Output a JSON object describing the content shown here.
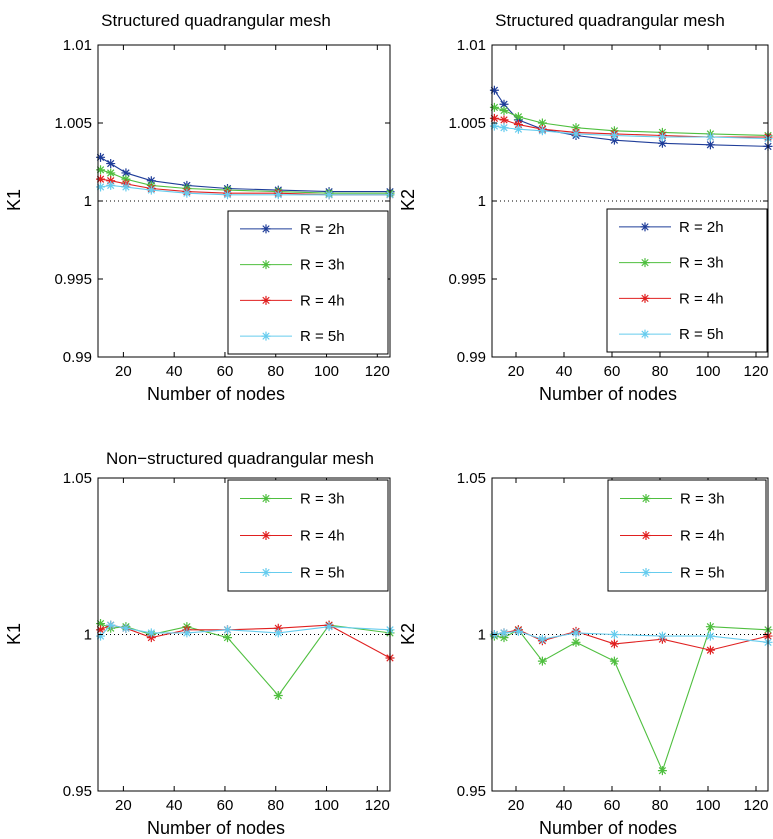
{
  "chart_data": [
    {
      "type": "line",
      "title": "Structured quadrangular mesh",
      "xlabel": "Number of nodes",
      "ylabel": "K1",
      "xlim": [
        10,
        125
      ],
      "ylim": [
        0.99,
        1.01
      ],
      "xticks": [
        20,
        40,
        60,
        80,
        100,
        120
      ],
      "yticks": [
        0.99,
        0.995,
        1,
        1.005,
        1.01
      ],
      "xtick_labels": [
        "20",
        "40",
        "60",
        "80",
        "100",
        "120"
      ],
      "ytick_labels": [
        "0.99",
        "0.995",
        "1",
        "1.005",
        "1.01"
      ],
      "reference_line": 1,
      "grid": false,
      "legend_position": "lower-right",
      "x": [
        11,
        15,
        21,
        31,
        45,
        61,
        81,
        101,
        125
      ],
      "series": [
        {
          "name": "R = 2h",
          "color": "#1f3d99",
          "values": [
            1.0028,
            1.0024,
            1.0018,
            1.0013,
            1.001,
            1.0008,
            1.0007,
            1.0006,
            1.0006
          ]
        },
        {
          "name": "R = 3h",
          "color": "#4fbf3f",
          "values": [
            1.002,
            1.0018,
            1.0014,
            1.001,
            1.0008,
            1.0007,
            1.0006,
            1.0005,
            1.0005
          ]
        },
        {
          "name": "R = 4h",
          "color": "#e02020",
          "values": [
            1.0014,
            1.0013,
            1.0011,
            1.0008,
            1.0006,
            1.0005,
            1.0005,
            1.0004,
            1.0004
          ]
        },
        {
          "name": "R = 5h",
          "color": "#66ccee",
          "values": [
            1.0009,
            1.001,
            1.0009,
            1.0007,
            1.0005,
            1.0004,
            1.0004,
            1.0004,
            1.0004
          ]
        }
      ]
    },
    {
      "type": "line",
      "title": "Structured quadrangular mesh",
      "xlabel": "Number of nodes",
      "ylabel": "K2",
      "xlim": [
        10,
        125
      ],
      "ylim": [
        0.99,
        1.01
      ],
      "xticks": [
        20,
        40,
        60,
        80,
        100,
        120
      ],
      "yticks": [
        0.99,
        0.995,
        1,
        1.005,
        1.01
      ],
      "xtick_labels": [
        "20",
        "40",
        "60",
        "80",
        "100",
        "120"
      ],
      "ytick_labels": [
        "0.99",
        "0.995",
        "1",
        "1.005",
        "1.01"
      ],
      "reference_line": 1,
      "grid": false,
      "legend_position": "lower-right",
      "x": [
        11,
        15,
        21,
        31,
        45,
        61,
        81,
        101,
        125
      ],
      "series": [
        {
          "name": "R = 2h",
          "color": "#1f3d99",
          "values": [
            1.0071,
            1.0062,
            1.0052,
            1.0046,
            1.0042,
            1.0039,
            1.0037,
            1.0036,
            1.0035
          ]
        },
        {
          "name": "R = 3h",
          "color": "#4fbf3f",
          "values": [
            1.006,
            1.0058,
            1.0054,
            1.005,
            1.0047,
            1.0045,
            1.0044,
            1.0043,
            1.0042
          ]
        },
        {
          "name": "R = 4h",
          "color": "#e02020",
          "values": [
            1.0053,
            1.0052,
            1.0049,
            1.0046,
            1.0044,
            1.0043,
            1.0042,
            1.0041,
            1.0041
          ]
        },
        {
          "name": "R = 5h",
          "color": "#66ccee",
          "values": [
            1.0048,
            1.0047,
            1.0046,
            1.0045,
            1.0043,
            1.0042,
            1.0041,
            1.0041,
            1.004
          ]
        }
      ]
    },
    {
      "type": "line",
      "title": "Non−structured quadrangular mesh",
      "xlabel": "Number of nodes",
      "ylabel": "K1",
      "xlim": [
        10,
        125
      ],
      "ylim": [
        0.95,
        1.05
      ],
      "xticks": [
        20,
        40,
        60,
        80,
        100,
        120
      ],
      "yticks": [
        0.95,
        1,
        1.05
      ],
      "xtick_labels": [
        "20",
        "40",
        "60",
        "80",
        "100",
        "120"
      ],
      "ytick_labels": [
        "0.95",
        "1",
        "1.05"
      ],
      "reference_line": 1,
      "grid": false,
      "legend_position": "top-right",
      "x": [
        11,
        15,
        21,
        31,
        45,
        61,
        81,
        101,
        125
      ],
      "series": [
        {
          "name": "R = 3h",
          "color": "#4fbf3f",
          "values": [
            1.0035,
            1.002,
            1.0025,
            1.0,
            1.0025,
            0.999,
            0.9805,
            1.003,
            1.0005
          ]
        },
        {
          "name": "R = 4h",
          "color": "#e02020",
          "values": [
            1.0015,
            1.003,
            1.002,
            0.999,
            1.0015,
            1.0015,
            1.002,
            1.003,
            0.9925
          ]
        },
        {
          "name": "R = 5h",
          "color": "#66ccee",
          "values": [
            0.9995,
            1.003,
            1.002,
            1.0005,
            1.0005,
            1.0015,
            1.0005,
            1.0025,
            1.0015
          ]
        }
      ]
    },
    {
      "type": "line",
      "title": "",
      "xlabel": "Number of nodes",
      "ylabel": "K2",
      "xlim": [
        10,
        125
      ],
      "ylim": [
        0.95,
        1.05
      ],
      "xticks": [
        20,
        40,
        60,
        80,
        100,
        120
      ],
      "yticks": [
        0.95,
        1,
        1.05
      ],
      "xtick_labels": [
        "20",
        "40",
        "60",
        "80",
        "100",
        "120"
      ],
      "ytick_labels": [
        "0.95",
        "1",
        "1.05"
      ],
      "reference_line": 1,
      "grid": false,
      "legend_position": "top-right",
      "x": [
        11,
        15,
        21,
        31,
        45,
        61,
        81,
        101,
        125
      ],
      "series": [
        {
          "name": "R = 3h",
          "color": "#4fbf3f",
          "values": [
            0.9995,
            0.999,
            1.0015,
            0.9915,
            0.9975,
            0.9915,
            0.9565,
            1.0025,
            1.0015
          ]
        },
        {
          "name": "R = 4h",
          "color": "#e02020",
          "values": [
            1.0,
            1.0005,
            1.0015,
            0.998,
            1.001,
            0.997,
            0.9985,
            0.995,
            0.9995
          ]
        },
        {
          "name": "R = 5h",
          "color": "#66ccee",
          "values": [
            1.0,
            1.0005,
            1.001,
            0.9985,
            1.0005,
            1.0,
            0.9995,
            0.9995,
            0.9975
          ]
        }
      ]
    }
  ]
}
